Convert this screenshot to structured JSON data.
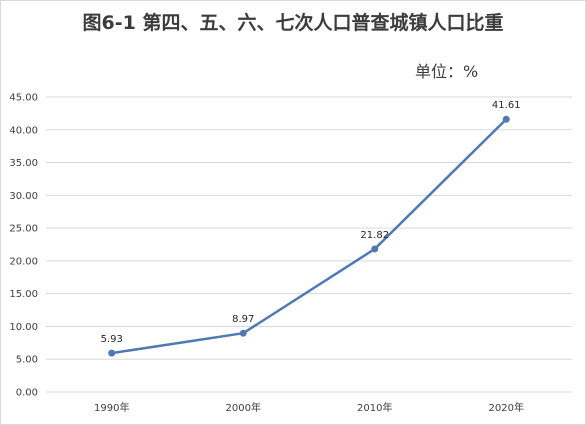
{
  "chart_data": {
    "type": "line",
    "title": "图6-1  第四、五、六、七次人口普查城镇人口比重",
    "unit_label": "单位：%",
    "categories": [
      "1990年",
      "2000年",
      "2010年",
      "2020年"
    ],
    "series": [
      {
        "values": [
          5.93,
          8.97,
          21.82,
          41.61
        ]
      }
    ],
    "data_labels": [
      "5.93",
      "8.97",
      "21.82",
      "41.61"
    ],
    "y_ticks": [
      "0.00",
      "5.00",
      "10.00",
      "15.00",
      "20.00",
      "25.00",
      "30.00",
      "35.00",
      "40.00",
      "45.00"
    ],
    "ylim": [
      0,
      45
    ],
    "grid": true,
    "line_color": "#4e79b4",
    "grid_color": "#d9d9d9"
  }
}
